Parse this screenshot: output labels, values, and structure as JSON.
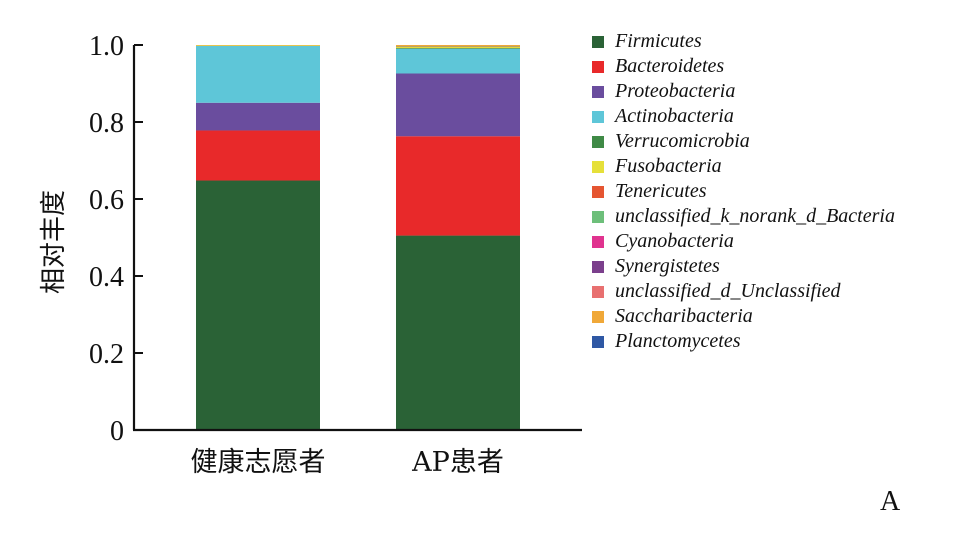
{
  "panel_label": "A",
  "chart_data": {
    "type": "bar",
    "stacked": true,
    "title": "",
    "xlabel": "",
    "ylabel": "相对丰度",
    "ylim": [
      0,
      1.0
    ],
    "yticks": [
      0,
      0.2,
      0.4,
      0.6,
      0.8,
      1.0
    ],
    "ytick_labels": [
      "0",
      "0.2",
      "0.4",
      "0.6",
      "0.8",
      "1.0"
    ],
    "categories": [
      "健康志愿者",
      "AP患者"
    ],
    "legend_position": "right",
    "series": [
      {
        "name": "Firmicutes",
        "color": "#2a6236",
        "values": [
          0.648,
          0.505
        ]
      },
      {
        "name": "Bacteroidetes",
        "color": "#e8292a",
        "values": [
          0.13,
          0.258
        ]
      },
      {
        "name": "Proteobacteria",
        "color": "#6a4d9e",
        "values": [
          0.072,
          0.163
        ]
      },
      {
        "name": "Actinobacteria",
        "color": "#5ec6d8",
        "values": [
          0.148,
          0.064
        ]
      },
      {
        "name": "Verrucomicrobia",
        "color": "#3f8a46",
        "values": [
          0.0,
          0.002
        ]
      },
      {
        "name": "Fusobacteria",
        "color": "#e6e03a",
        "values": [
          0.001,
          0.003
        ]
      },
      {
        "name": "Tenericutes",
        "color": "#e55531",
        "values": [
          0.0,
          0.001
        ]
      },
      {
        "name": "unclassified_k_norank_d_Bacteria",
        "color": "#6dbf7a",
        "values": [
          0.0,
          0.001
        ]
      },
      {
        "name": "Cyanobacteria",
        "color": "#e0338f",
        "values": [
          0.0,
          0.0
        ]
      },
      {
        "name": "Synergistetes",
        "color": "#7b3f8c",
        "values": [
          0.0,
          0.0
        ]
      },
      {
        "name": "unclassified_d_Unclassified",
        "color": "#e87070",
        "values": [
          0.0,
          0.0
        ]
      },
      {
        "name": "Saccharibacteria",
        "color": "#f0a838",
        "values": [
          0.001,
          0.003
        ]
      },
      {
        "name": "Planctomycetes",
        "color": "#2f58a4",
        "values": [
          0.0,
          0.0
        ]
      }
    ]
  }
}
